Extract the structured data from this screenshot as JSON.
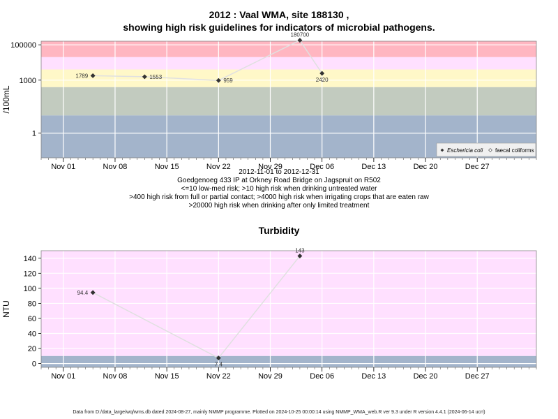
{
  "chart1": {
    "title_line1": "2012 : Vaal WMA, site 188130 ,",
    "title_line2": "showing high risk guidelines for indicators of microbial pathogens.",
    "date_range": "2012-11-01 to 2012-12-31",
    "location": "Goedgenoeg 433 IP at Orkney Road Bridge on Jagspruit on R502",
    "notes": [
      "<=10 low-med risk; >10 high risk when drinking untreated water",
      ">400 high risk from full or partial contact; >4000 high risk when irrigating crops that are eaten raw",
      ">20000 high risk when drinking after only limited treatment"
    ],
    "legend": [
      "Eschericia coli",
      "faecal coliforms"
    ]
  },
  "chart2": {
    "title": "Turbidity"
  },
  "footer": "Data from D:/data_large/wq/wms.db dated 2024-08-27, mainly NMMP programme. Plotted on 2024-10-25 00:00:14 using NMMP_WMA_web.R ver 9.3 under R version 4.4.1 (2024-06-14 ucrt)",
  "colors": {
    "red": "#ffb6c1",
    "pink": "#ffe0ff",
    "yellow": "#fff8c8",
    "sage": "#c2cbbf",
    "blue": "#a3b4cb",
    "line": "#e0e0e0",
    "point": "#333333"
  },
  "chart_data": [
    {
      "type": "line",
      "x_ticks": [
        "Nov 01",
        "Nov 08",
        "Nov 15",
        "Nov 22",
        "Nov 29",
        "Dec 06",
        "Dec 13",
        "Dec 20",
        "Dec 27"
      ],
      "x_tick_dates": [
        "2012-11-01",
        "2012-11-08",
        "2012-11-15",
        "2012-11-22",
        "2012-11-29",
        "2012-12-06",
        "2012-12-13",
        "2012-12-20",
        "2012-12-27"
      ],
      "xlim": [
        "2012-10-29",
        "2013-01-04"
      ],
      "y_scale": "log",
      "ylabel": "/100mL",
      "y_ticks": [
        1,
        1000,
        100000
      ],
      "y_tick_labels": [
        "1",
        "1000",
        "100000"
      ],
      "ylim": [
        0.04,
        160000
      ],
      "bands": [
        {
          "from": 20000,
          "to": 160000,
          "color": "#ffb6c1"
        },
        {
          "from": 4000,
          "to": 20000,
          "color": "#ffe0ff"
        },
        {
          "from": 400,
          "to": 4000,
          "color": "#fff8c8"
        },
        {
          "from": 10,
          "to": 400,
          "color": "#c2cbbf"
        },
        {
          "from": 0.04,
          "to": 10,
          "color": "#a3b4cb"
        }
      ],
      "series": [
        {
          "name": "Eschericia coli",
          "x": [
            "2012-11-05",
            "2012-11-12",
            "2012-11-22",
            "2012-12-03",
            "2012-12-06"
          ],
          "values": [
            1789,
            1553,
            959,
            180700,
            2420
          ],
          "labels": [
            "1789",
            "1553",
            "959",
            "180700",
            "2420"
          ],
          "label_pos": [
            "left",
            "right",
            "right",
            "above",
            "below"
          ]
        }
      ],
      "grid": true,
      "legend_position": "bottom-right"
    },
    {
      "type": "line",
      "title": "Turbidity",
      "x_ticks": [
        "Nov 01",
        "Nov 08",
        "Nov 15",
        "Nov 22",
        "Nov 29",
        "Dec 06",
        "Dec 13",
        "Dec 20",
        "Dec 27"
      ],
      "x_tick_dates": [
        "2012-11-01",
        "2012-11-08",
        "2012-11-15",
        "2012-11-22",
        "2012-11-29",
        "2012-12-06",
        "2012-12-13",
        "2012-12-20",
        "2012-12-27"
      ],
      "xlim": [
        "2012-10-29",
        "2013-01-04"
      ],
      "ylabel": "NTU",
      "y_ticks": [
        0,
        20,
        40,
        60,
        80,
        100,
        120,
        140
      ],
      "ylim": [
        -5,
        150
      ],
      "bands": [
        {
          "from": 10,
          "to": 150,
          "color": "#ffe0ff"
        },
        {
          "from": -5,
          "to": 10,
          "color": "#a3b4cb"
        }
      ],
      "series": [
        {
          "name": "Turbidity",
          "x": [
            "2012-11-05",
            "2012-11-22",
            "2012-12-03"
          ],
          "values": [
            94.4,
            7.4,
            143
          ],
          "labels": [
            "94.4",
            "7.4",
            "143"
          ],
          "label_pos": [
            "left",
            "below",
            "above"
          ]
        }
      ],
      "grid": true
    }
  ]
}
